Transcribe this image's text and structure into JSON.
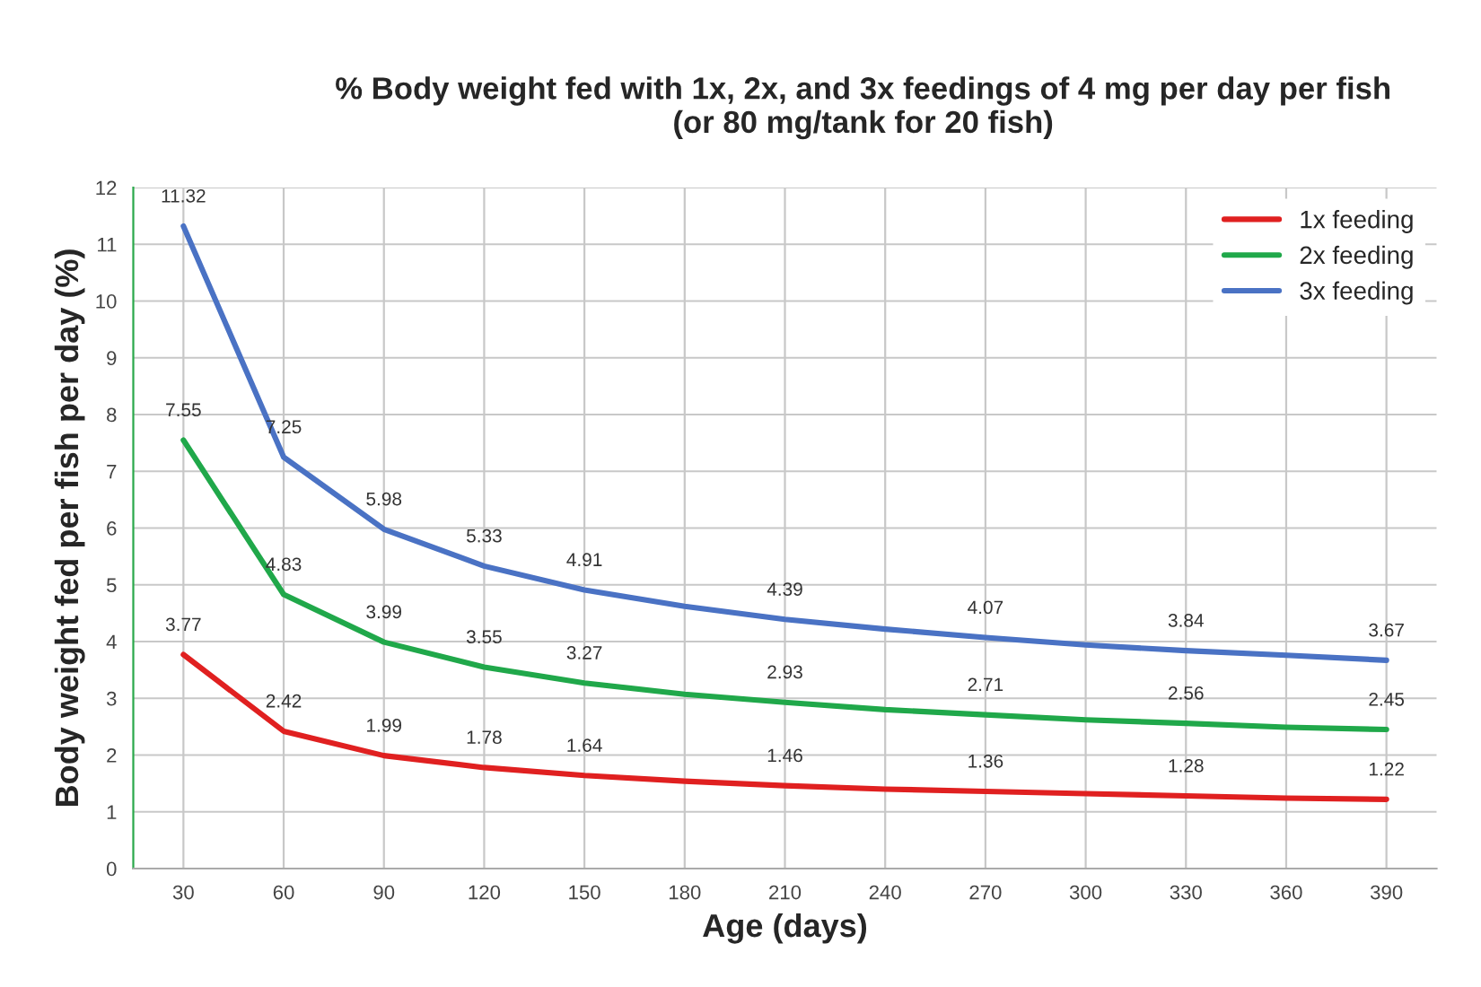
{
  "chart_data": {
    "type": "line",
    "title": "% Body weight fed with 1x, 2x, and 3x feedings of 4 mg per day per fish\n(or 80 mg/tank for 20 fish)",
    "xlabel": "Age (days)",
    "ylabel": "Body weight fed per fish per day (%)",
    "categories": [
      "30",
      "60",
      "90",
      "120",
      "150",
      "180",
      "210",
      "240",
      "270",
      "300",
      "330",
      "360",
      "390"
    ],
    "series": [
      {
        "name": "1x feeding",
        "color": "#e02020",
        "values": [
          3.77,
          2.42,
          1.99,
          1.78,
          1.64,
          1.54,
          1.46,
          1.4,
          1.36,
          1.32,
          1.28,
          1.24,
          1.22
        ],
        "value_labels": [
          "3.77",
          "2.42",
          "1.99",
          "1.78",
          "1.64",
          null,
          "1.46",
          null,
          "1.36",
          null,
          "1.28",
          null,
          "1.22"
        ]
      },
      {
        "name": "2x feeding",
        "color": "#20a84a",
        "values": [
          7.55,
          4.83,
          3.99,
          3.55,
          3.27,
          3.07,
          2.93,
          2.8,
          2.71,
          2.62,
          2.56,
          2.49,
          2.45
        ],
        "value_labels": [
          "7.55",
          "4.83",
          "3.99",
          "3.55",
          "3.27",
          null,
          "2.93",
          null,
          "2.71",
          null,
          "2.56",
          null,
          "2.45"
        ]
      },
      {
        "name": "3x feeding",
        "color": "#4a72c4",
        "values": [
          11.32,
          7.25,
          5.98,
          5.33,
          4.91,
          4.62,
          4.39,
          4.22,
          4.07,
          3.94,
          3.84,
          3.76,
          3.67
        ],
        "value_labels": [
          "11.32",
          "7.25",
          "5.98",
          "5.33",
          "4.91",
          null,
          "4.39",
          null,
          "4.07",
          null,
          "3.84",
          null,
          "3.67"
        ]
      }
    ],
    "ylim": [
      0,
      12
    ],
    "yticks": [
      0,
      1,
      2,
      3,
      4,
      5,
      6,
      7,
      8,
      9,
      10,
      11,
      12
    ],
    "grid": true,
    "legend": "top right",
    "marker": "none",
    "line_style": "solid"
  }
}
